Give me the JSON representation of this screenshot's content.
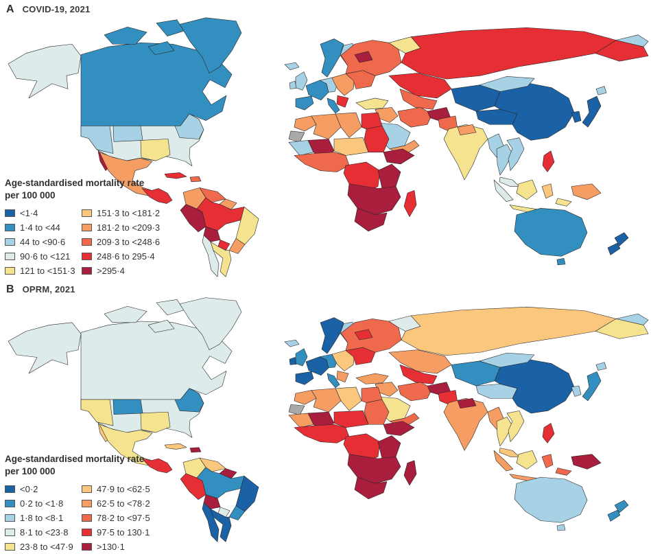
{
  "palette": [
    "#1b61a5",
    "#338fc0",
    "#a7d1e5",
    "#ddeceb",
    "#f5e38f",
    "#fac77d",
    "#f69d63",
    "#ef6a4d",
    "#e62e35",
    "#a81e3c"
  ],
  "no_data_color": "#a9a9a9",
  "border_color": "#262626",
  "ocean_color": "#ffffff",
  "chart_data": [
    {
      "type": "choropleth",
      "panel_label": "A",
      "title": "COVID-19, 2021",
      "legend_title": "Age-standardised mortality rate",
      "legend_subtitle": "per 100 000",
      "categories": [
        "<1·4",
        "1·4 to <44",
        "44 to <90·6",
        "90·6 to <121",
        "121 to <151·3",
        "151·3 to <181·2",
        "181·2 to <209·3",
        "209·3 to <248·6",
        "248·6 to 295·4",
        ">295·4"
      ],
      "regions": {
        "alaska": 3,
        "canada": 1,
        "arctic1": 1,
        "arctic2": 1,
        "arctic3": 1,
        "greenland": 1,
        "usa": 3,
        "usa_w": 2,
        "usa_n": 2,
        "usa_s": 4,
        "usa_ne": 2,
        "baja": 9,
        "mexico": 6,
        "c_america": 8,
        "cuba": 8,
        "hispaniola": 7,
        "colombia": 6,
        "venezuela": 7,
        "guyanas": 6,
        "brazil_amazon": 8,
        "brazil_east": 4,
        "brazil_south": 6,
        "peru": 9,
        "bolivia": 9,
        "paraguay": 8,
        "chile": 3,
        "argentina": 4,
        "iceland": 2,
        "uk": 2,
        "ireland": 2,
        "scandinavia": 1,
        "finland": 2,
        "france": 1,
        "germany_ce": 2,
        "iberia": 1,
        "italy": 1,
        "east_europe": 6,
        "balkans": 8,
        "ukraine": 7,
        "russia_west": 7,
        "russia_north": 4,
        "russia_sib": 8,
        "russia_fe": 8,
        "chukotka": 2,
        "russia_patch": 9,
        "kazakh": 8,
        "c_asia": 7,
        "turkey": 4,
        "levant": 6,
        "iran": 7,
        "saudi": 2,
        "yemen": 6,
        "afghan": 9,
        "pakistan": 7,
        "morocco": 6,
        "wsahara": "nd",
        "algeria": 6,
        "libya": 6,
        "egypt": 8,
        "mauritania": 2,
        "mali": 9,
        "niger_chad": 5,
        "sudan": 8,
        "horn": 9,
        "w_africa": 7,
        "c_africa": 8,
        "e_africa": 9,
        "s_africa_band": 9,
        "south_africa": 9,
        "madagascar": 8,
        "india": 4,
        "india_n": 6,
        "china_w": 0,
        "tibet": 0,
        "china_e": 0,
        "mongolia": 2,
        "korea": 0,
        "japan": 0,
        "hokkaido": 2,
        "myanmar": 2,
        "thailand": 2,
        "vietnam": 2,
        "malaysia": 3,
        "sumatra": 3,
        "borneo": 4,
        "java": 4,
        "sulawesi": 5,
        "philippines": 8,
        "png": 6,
        "indo_e": 4,
        "australia": 1,
        "tasmania": 1,
        "new_zealand": 0,
        "nz_south": 0
      }
    },
    {
      "type": "choropleth",
      "panel_label": "B",
      "title": "OPRM, 2021",
      "legend_title": "Age-standardised mortality rate",
      "legend_subtitle": "per 100 000",
      "categories": [
        "<0·2",
        "0·2 to <1·8",
        "1·8 to <8·1",
        "8·1 to <23·8",
        "23·8 to <47·9",
        "47·9 to <62·5",
        "62·5 to <78·2",
        "78·2 to <97·5",
        "97·5 to 130·1",
        ">130·1"
      ],
      "regions": {
        "alaska": 3,
        "canada": 3,
        "arctic1": 3,
        "arctic2": 3,
        "arctic3": 3,
        "greenland": 3,
        "usa": 3,
        "usa_w": 4,
        "usa_n": 1,
        "usa_s": 4,
        "usa_ne": 1,
        "baja": 5,
        "mexico": 4,
        "c_america": 8,
        "cuba": 5,
        "hispaniola": 9,
        "colombia": 4,
        "venezuela": 5,
        "guyanas": 9,
        "brazil_amazon": 1,
        "brazil_east": 0,
        "brazil_south": 1,
        "peru": 8,
        "bolivia": 9,
        "paraguay": 3,
        "chile": 0,
        "argentina": 0,
        "iceland": 2,
        "uk": 1,
        "ireland": 0,
        "scandinavia": 0,
        "finland": 2,
        "france": 0,
        "germany_ce": 1,
        "iberia": 0,
        "italy": 1,
        "east_europe": 5,
        "balkans": 6,
        "ukraine": 8,
        "russia_west": 7,
        "russia_north": 3,
        "russia_sib": 5,
        "russia_fe": 4,
        "chukotka": 2,
        "russia_patch": 8,
        "kazakh": 6,
        "c_asia": 8,
        "turkey": 6,
        "levant": 6,
        "iran": 7,
        "saudi": 4,
        "yemen": 7,
        "afghan": 9,
        "pakistan": 8,
        "morocco": 6,
        "wsahara": "nd",
        "algeria": 6,
        "libya": 5,
        "egypt": 7,
        "mauritania": 6,
        "mali": 9,
        "niger_chad": 8,
        "sudan": 7,
        "horn": 9,
        "w_africa": 8,
        "c_africa": 8,
        "e_africa": 9,
        "s_africa_band": 9,
        "south_africa": 9,
        "madagascar": 9,
        "india": 6,
        "india_n": 9,
        "china_w": 1,
        "tibet": 2,
        "china_e": 0,
        "mongolia": 2,
        "korea": 2,
        "japan": 1,
        "hokkaido": 2,
        "myanmar": 6,
        "thailand": 4,
        "vietnam": 4,
        "malaysia": 5,
        "sumatra": 6,
        "borneo": 4,
        "java": 6,
        "sulawesi": 7,
        "philippines": 8,
        "png": 9,
        "indo_e": 7,
        "australia": 2,
        "tasmania": 2,
        "new_zealand": 1,
        "nz_south": 1
      }
    }
  ]
}
